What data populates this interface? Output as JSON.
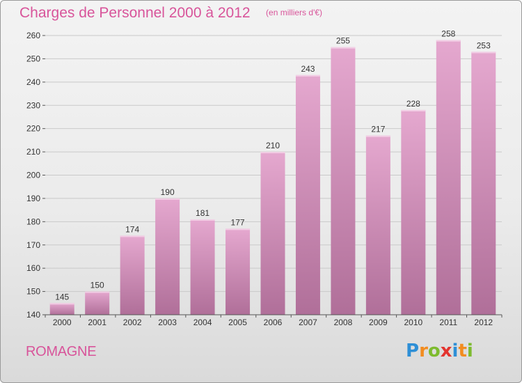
{
  "title": "Charges de Personnel 2000 à 2012",
  "subtitle": "(en milliers d'€)",
  "place": "ROMAGNE",
  "logo": {
    "letters": [
      "P",
      "r",
      "o",
      "x",
      "i",
      "t",
      "i"
    ],
    "colors": [
      "#2e8fd6",
      "#f28c1f",
      "#7dbb2e",
      "#e3342f",
      "#2e8fd6",
      "#f28c1f",
      "#7dbb2e"
    ]
  },
  "colors": {
    "bar_top": "#e5a8cf",
    "bar_bottom": "#b06f99",
    "accent": "#d8549a",
    "text": "#333333"
  },
  "chart_data": {
    "type": "bar",
    "categories": [
      "2000",
      "2001",
      "2002",
      "2003",
      "2004",
      "2005",
      "2006",
      "2007",
      "2008",
      "2009",
      "2010",
      "2011",
      "2012"
    ],
    "values": [
      145,
      150,
      174,
      190,
      181,
      177,
      210,
      243,
      255,
      217,
      228,
      258,
      253
    ],
    "data_labels": [
      "145",
      "150",
      "174",
      "190",
      "181",
      "177",
      "210",
      "243",
      "255",
      "217",
      "228",
      "258",
      "253"
    ],
    "y_ticks": [
      "140",
      "150",
      "160",
      "170",
      "180",
      "190",
      "200",
      "210",
      "220",
      "230",
      "240",
      "250",
      "260"
    ],
    "ylim": [
      140,
      260
    ],
    "grid": true
  }
}
